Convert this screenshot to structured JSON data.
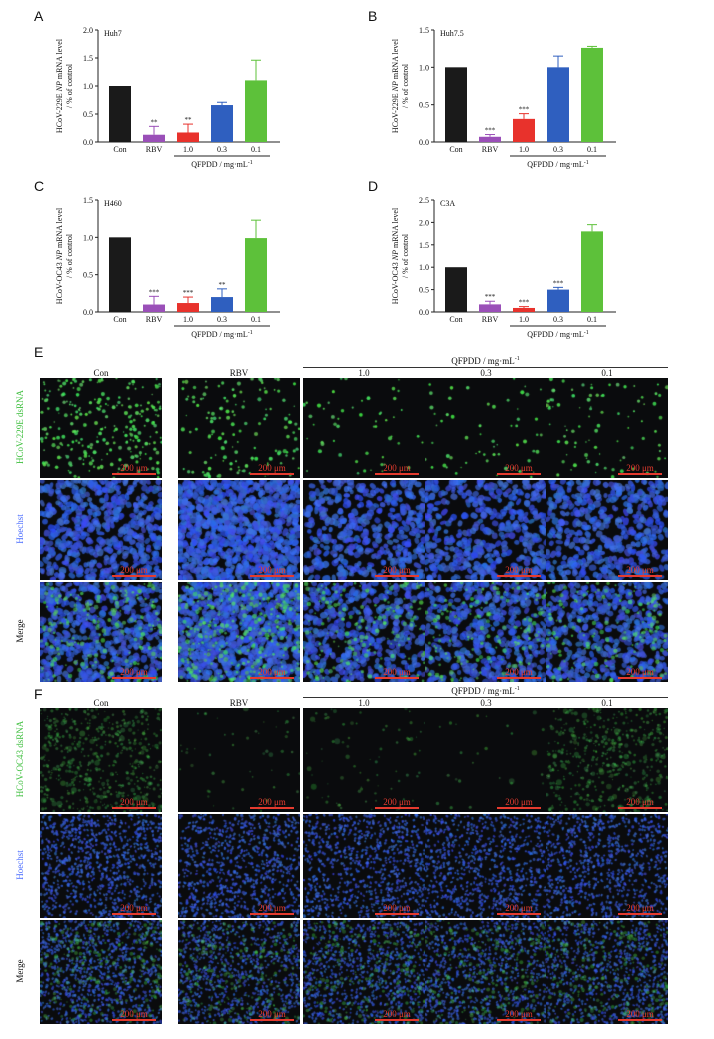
{
  "panels": {
    "A": "A",
    "B": "B",
    "C": "C",
    "D": "D",
    "E": "E",
    "F": "F"
  },
  "chart_data": [
    {
      "id": "A",
      "type": "bar",
      "title": "Huh7",
      "ylabel": "HCoV-229E NP mRNA level / % of control",
      "ylabel_html": "HCoV-229E <i>NP</i> mRNA level",
      "ylabel_line2": "/ % of control",
      "categories": [
        "Con",
        "RBV",
        "1.0",
        "0.3",
        "0.1"
      ],
      "values": [
        1.0,
        0.13,
        0.17,
        0.66,
        1.1
      ],
      "errors": [
        0,
        0.15,
        0.15,
        0.05,
        0.36
      ],
      "sig": [
        "",
        "**",
        "**",
        "",
        ""
      ],
      "ylim": [
        0,
        2.0
      ],
      "yticks": [
        "0.0",
        "0.5",
        "1.0",
        "1.5",
        "2.0"
      ],
      "group_label": "QFPDD / mg·mL",
      "group_sup": "-1"
    },
    {
      "id": "B",
      "type": "bar",
      "title": "Huh7.5",
      "ylabel": "HCoV-229E NP mRNA level / % of control",
      "categories": [
        "Con",
        "RBV",
        "1.0",
        "0.3",
        "0.1"
      ],
      "values": [
        1.0,
        0.07,
        0.31,
        1.0,
        1.26
      ],
      "errors": [
        0,
        0.03,
        0.07,
        0.15,
        0.02
      ],
      "sig": [
        "",
        "***",
        "***",
        "",
        ""
      ],
      "ylim": [
        0,
        1.5
      ],
      "yticks": [
        "0.0",
        "0.5",
        "1.0",
        "1.5"
      ],
      "group_label": "QFPDD / mg·mL",
      "group_sup": "-1"
    },
    {
      "id": "C",
      "type": "bar",
      "title": "H460",
      "ylabel": "HCoV-OC43 NP mRNA level / % of control",
      "categories": [
        "Con",
        "RBV",
        "1.0",
        "0.3",
        "0.1"
      ],
      "values": [
        1.0,
        0.1,
        0.12,
        0.2,
        0.99
      ],
      "errors": [
        0,
        0.11,
        0.08,
        0.11,
        0.24
      ],
      "sig": [
        "",
        "***",
        "***",
        "**",
        ""
      ],
      "ylim": [
        0,
        1.5
      ],
      "yticks": [
        "0.0",
        "0.5",
        "1.0",
        "1.5"
      ],
      "group_label": "QFPDD / mg·mL",
      "group_sup": "-1"
    },
    {
      "id": "D",
      "type": "bar",
      "title": "C3A",
      "ylabel": "HCoV-OC43 NP mRNA level / % of control",
      "categories": [
        "Con",
        "RBV",
        "1.0",
        "0.3",
        "0.1"
      ],
      "values": [
        1.0,
        0.17,
        0.09,
        0.5,
        1.8
      ],
      "errors": [
        0,
        0.07,
        0.03,
        0.05,
        0.15
      ],
      "sig": [
        "",
        "***",
        "***",
        "***",
        ""
      ],
      "ylim": [
        0,
        2.5
      ],
      "yticks": [
        "0.0",
        "0.5",
        "1.0",
        "1.5",
        "2.0",
        "2.5"
      ],
      "group_label": "QFPDD / mg·mL",
      "group_sup": "-1"
    }
  ],
  "bar_colors": [
    "#1a1a1a",
    "#9a4fb8",
    "#e8322c",
    "#2f5fbf",
    "#5dc13a"
  ],
  "micrographs": {
    "E": {
      "header": "QFPDD / mg·mL",
      "header_sup": "-1",
      "columns": [
        "Con",
        "RBV",
        "1.0",
        "0.3",
        "0.1"
      ],
      "rows": [
        {
          "label": "HCoV-229E dsRNA",
          "color": "#3fbf3f",
          "stain": "green-dots"
        },
        {
          "label": "Hoechst",
          "color": "#4a6cff",
          "stain": "blue-nuclei"
        },
        {
          "label": "Merge",
          "color": "#111111",
          "stain": "merge"
        }
      ],
      "scale": "200 μm"
    },
    "F": {
      "header": "QFPDD / mg·mL",
      "header_sup": "-1",
      "columns": [
        "Con",
        "RBV",
        "1.0",
        "0.3",
        "0.1"
      ],
      "rows": [
        {
          "label": "HCoV-OC43 dsRNA",
          "color": "#3fbf3f",
          "stain": "green-haze"
        },
        {
          "label": "Hoechst",
          "color": "#4a6cff",
          "stain": "blue-fine"
        },
        {
          "label": "Merge",
          "color": "#111111",
          "stain": "merge-fine"
        }
      ],
      "scale": "200 μm"
    }
  }
}
